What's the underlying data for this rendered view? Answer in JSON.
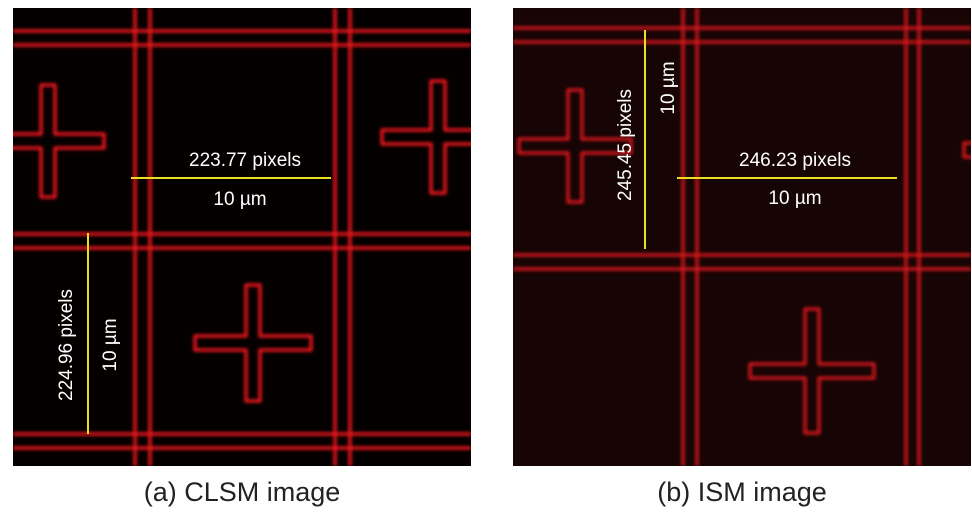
{
  "panels": [
    {
      "caption": "(a) CLSM image",
      "horizontal_label": "223.77 pixels",
      "horizontal_unit": "10 µm",
      "vertical_label": "224.96 pixels",
      "vertical_unit": "10 µm"
    },
    {
      "caption": "(b) ISM image",
      "horizontal_label": "246.23 pixels",
      "horizontal_unit": "10 µm",
      "vertical_label": "245.45 pixels",
      "vertical_unit": "10 µm"
    }
  ]
}
